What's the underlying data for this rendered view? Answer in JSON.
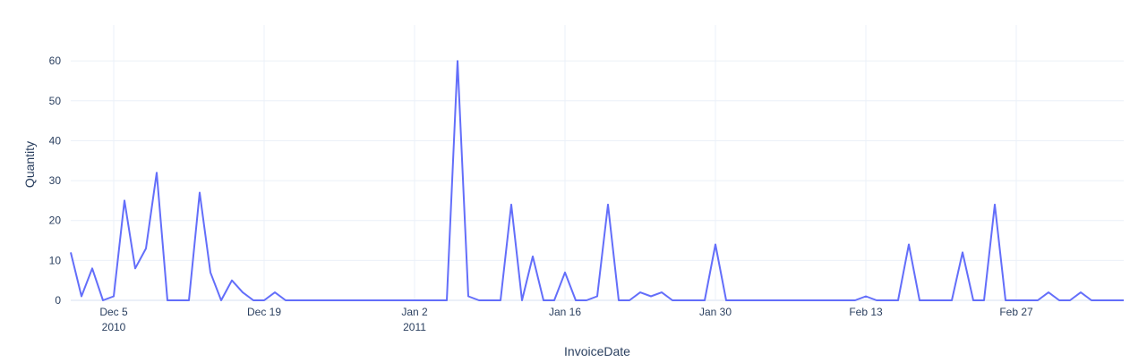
{
  "chart_data": {
    "type": "line",
    "xlabel": "InvoiceDate",
    "ylabel": "Quantity",
    "ylim": [
      0,
      69
    ],
    "xlim": [
      "2010-12-01",
      "2011-03-09"
    ],
    "y_ticks": [
      0,
      10,
      20,
      30,
      40,
      50,
      60
    ],
    "x_ticks": [
      {
        "date": "2010-12-05",
        "label": "Dec 5",
        "sublabel": "2010"
      },
      {
        "date": "2010-12-19",
        "label": "Dec 19",
        "sublabel": ""
      },
      {
        "date": "2011-01-02",
        "label": "Jan 2",
        "sublabel": "2011"
      },
      {
        "date": "2011-01-16",
        "label": "Jan 16",
        "sublabel": ""
      },
      {
        "date": "2011-01-30",
        "label": "Jan 30",
        "sublabel": ""
      },
      {
        "date": "2011-02-13",
        "label": "Feb 13",
        "sublabel": ""
      },
      {
        "date": "2011-02-27",
        "label": "Feb 27",
        "sublabel": ""
      }
    ],
    "grid": true,
    "line_color": "#636efa",
    "series": [
      {
        "x": [
          "2010-12-01",
          "2010-12-02",
          "2010-12-03",
          "2010-12-04",
          "2010-12-05",
          "2010-12-06",
          "2010-12-07",
          "2010-12-08",
          "2010-12-09",
          "2010-12-10",
          "2010-12-11",
          "2010-12-12",
          "2010-12-13",
          "2010-12-14",
          "2010-12-15",
          "2010-12-16",
          "2010-12-17",
          "2010-12-18",
          "2010-12-19",
          "2010-12-20",
          "2010-12-21",
          "2010-12-22",
          "2010-12-23",
          "2010-12-24",
          "2010-12-25",
          "2010-12-26",
          "2010-12-27",
          "2010-12-28",
          "2010-12-29",
          "2010-12-30",
          "2010-12-31",
          "2011-01-01",
          "2011-01-02",
          "2011-01-03",
          "2011-01-04",
          "2011-01-05",
          "2011-01-06",
          "2011-01-07",
          "2011-01-08",
          "2011-01-09",
          "2011-01-10",
          "2011-01-11",
          "2011-01-12",
          "2011-01-13",
          "2011-01-14",
          "2011-01-15",
          "2011-01-16",
          "2011-01-17",
          "2011-01-18",
          "2011-01-19",
          "2011-01-20",
          "2011-01-21",
          "2011-01-22",
          "2011-01-23",
          "2011-01-24",
          "2011-01-25",
          "2011-01-26",
          "2011-01-27",
          "2011-01-28",
          "2011-01-29",
          "2011-01-30",
          "2011-01-31",
          "2011-02-01",
          "2011-02-02",
          "2011-02-03",
          "2011-02-04",
          "2011-02-05",
          "2011-02-06",
          "2011-02-07",
          "2011-02-08",
          "2011-02-09",
          "2011-02-10",
          "2011-02-11",
          "2011-02-12",
          "2011-02-13",
          "2011-02-14",
          "2011-02-15",
          "2011-02-16",
          "2011-02-17",
          "2011-02-18",
          "2011-02-19",
          "2011-02-20",
          "2011-02-21",
          "2011-02-22",
          "2011-02-23",
          "2011-02-24",
          "2011-02-25",
          "2011-02-26",
          "2011-02-27",
          "2011-02-28",
          "2011-03-01",
          "2011-03-02",
          "2011-03-03",
          "2011-03-04",
          "2011-03-05",
          "2011-03-06",
          "2011-03-07",
          "2011-03-08",
          "2011-03-09"
        ],
        "y": [
          12,
          1,
          8,
          0,
          1,
          25,
          8,
          13,
          32,
          0,
          0,
          0,
          27,
          7,
          0,
          5,
          2,
          0,
          0,
          2,
          0,
          0,
          0,
          0,
          0,
          0,
          0,
          0,
          0,
          0,
          0,
          0,
          0,
          0,
          0,
          0,
          60,
          1,
          0,
          0,
          0,
          24,
          0,
          11,
          0,
          0,
          7,
          0,
          0,
          1,
          24,
          0,
          0,
          2,
          1,
          2,
          0,
          0,
          0,
          0,
          14,
          0,
          0,
          0,
          0,
          0,
          0,
          0,
          0,
          0,
          0,
          0,
          0,
          0,
          1,
          0,
          0,
          0,
          14,
          0,
          0,
          0,
          0,
          12,
          0,
          0,
          24,
          0,
          0,
          0,
          0,
          2,
          0,
          0,
          2,
          0,
          0,
          0,
          0
        ]
      }
    ]
  }
}
